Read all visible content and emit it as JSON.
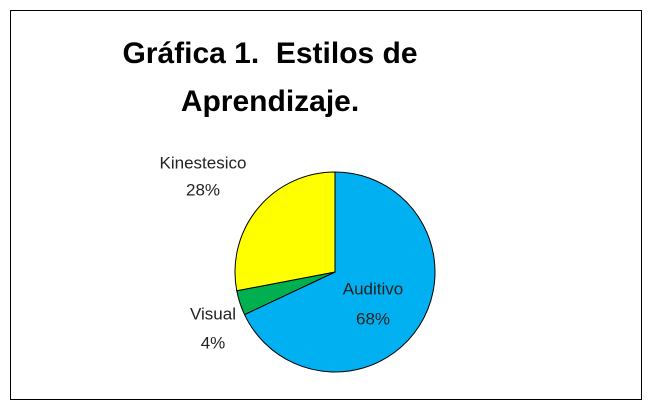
{
  "chart_data": {
    "type": "pie",
    "title": "Gráfica 1.  Estilos de Aprendizaje.",
    "categories": [
      "Auditivo",
      "Visual",
      "Kinestesico"
    ],
    "values": [
      68,
      4,
      28
    ],
    "value_labels": [
      "68%",
      "4%",
      "28%"
    ],
    "colors": [
      "#00b0f0",
      "#00b050",
      "#ffff00"
    ]
  }
}
